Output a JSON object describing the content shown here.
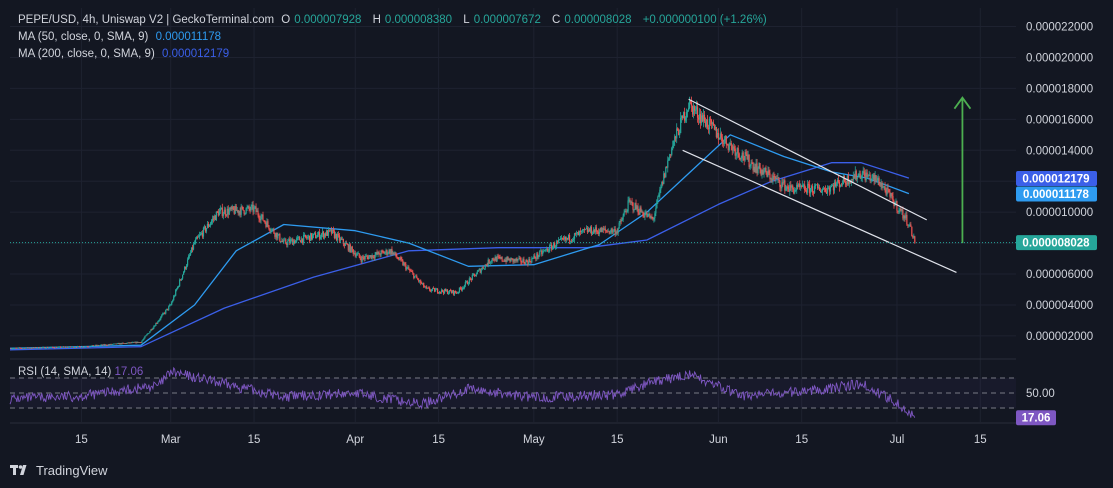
{
  "header": {
    "symbol_line": "PEPE/USD, 4h, Uniswap V2 | GeckoTerminal.com",
    "o_label": "O",
    "o_value": "0.000007928",
    "h_label": "H",
    "h_value": "0.000008380",
    "l_label": "L",
    "l_value": "0.000007672",
    "c_label": "C",
    "c_value": "0.000008028",
    "change": "+0.000000100 (+1.26%)",
    "ma50_label": "MA (50, close, 0, SMA, 9)",
    "ma50_value": "0.000011178",
    "ma200_label": "MA (200, close, 0, SMA, 9)",
    "ma200_value": "0.000012179"
  },
  "rsi_legend": {
    "label": "RSI (14, SMA, 14)",
    "value": "17.06"
  },
  "footer": {
    "brand": "TradingView"
  },
  "colors": {
    "background": "#131722",
    "up": "#26a69a",
    "down": "#ef5350",
    "ma50": "#2e9bf0",
    "ma200": "#3b5fe8",
    "rsi": "#7e57c2",
    "arrow": "#4caf50",
    "channel": "#e0e3eb"
  },
  "chart_data": {
    "type": "candlestick",
    "title": "PEPE/USD, 4h, Uniswap V2 | GeckoTerminal.com",
    "price_axis": {
      "ticks": [
        "0.000002000",
        "0.000004000",
        "0.000006000",
        "0.000008000",
        "0.000010000",
        "0.000012000",
        "0.000014000",
        "0.000016000",
        "0.000018000",
        "0.000020000",
        "0.000022000"
      ],
      "tick_values": [
        2e-06,
        4e-06,
        6e-06,
        8e-06,
        1e-05,
        1.2e-05,
        1.4e-05,
        1.6e-05,
        1.8e-05,
        2e-05,
        2.2e-05
      ],
      "ylim": [
        7e-07,
        2.32e-05
      ]
    },
    "time_axis": {
      "labels": [
        "15",
        "Mar",
        "15",
        "Apr",
        "15",
        "May",
        "15",
        "Jun",
        "15",
        "Jul",
        "15"
      ],
      "dates": [
        "2024-02-15",
        "2024-03-01",
        "2024-03-15",
        "2024-04-01",
        "2024-04-15",
        "2024-05-01",
        "2024-05-15",
        "2024-06-01",
        "2024-06-15",
        "2024-07-01",
        "2024-07-15"
      ],
      "xlim": [
        "2024-02-03",
        "2024-07-21"
      ]
    },
    "price_series": {
      "name": "PEPE/USD close",
      "dates": [
        "2024-02-03",
        "2024-02-15",
        "2024-02-25",
        "2024-03-01",
        "2024-03-05",
        "2024-03-09",
        "2024-03-15",
        "2024-03-20",
        "2024-03-28",
        "2024-04-02",
        "2024-04-07",
        "2024-04-13",
        "2024-04-18",
        "2024-04-24",
        "2024-04-30",
        "2024-05-05",
        "2024-05-10",
        "2024-05-15",
        "2024-05-17",
        "2024-05-21",
        "2024-05-24",
        "2024-05-27",
        "2024-06-01",
        "2024-06-07",
        "2024-06-13",
        "2024-06-19",
        "2024-06-25",
        "2024-06-28",
        "2024-07-03",
        "2024-07-04"
      ],
      "values": [
        1.2e-06,
        1.3e-06,
        1.6e-06,
        4e-06,
        8e-06,
        1e-05,
        1.02e-05,
        8e-06,
        8.7e-06,
        7e-06,
        7.5e-06,
        5e-06,
        4.8e-06,
        7e-06,
        6.8e-06,
        8e-06,
        8.8e-06,
        8.8e-06,
        1.06e-05,
        9.5e-06,
        1.4e-05,
        1.7e-05,
        1.5e-05,
        1.3e-05,
        1.15e-05,
        1.15e-05,
        1.25e-05,
        1.2e-05,
        9.3e-06,
        8.028e-06
      ]
    },
    "ma50": {
      "name": "MA (50, close, 0, SMA, 9)",
      "last": 1.1178e-05,
      "dates": [
        "2024-02-03",
        "2024-02-25",
        "2024-03-05",
        "2024-03-12",
        "2024-03-20",
        "2024-04-01",
        "2024-04-10",
        "2024-04-20",
        "2024-05-01",
        "2024-05-12",
        "2024-05-20",
        "2024-05-27",
        "2024-06-03",
        "2024-06-12",
        "2024-06-20",
        "2024-06-26",
        "2024-07-03"
      ],
      "values": [
        1.2e-06,
        1.4e-06,
        4e-06,
        7.5e-06,
        9.2e-06,
        8.8e-06,
        8e-06,
        6.5e-06,
        6.6e-06,
        7.9e-06,
        1e-05,
        1.25e-05,
        1.5e-05,
        1.36e-05,
        1.26e-05,
        1.22e-05,
        1.12e-05
      ]
    },
    "ma200": {
      "name": "MA (200, close, 0, SMA, 9)",
      "last": 1.2179e-05,
      "dates": [
        "2024-02-03",
        "2024-02-25",
        "2024-03-10",
        "2024-03-25",
        "2024-04-10",
        "2024-04-25",
        "2024-05-10",
        "2024-05-20",
        "2024-06-01",
        "2024-06-10",
        "2024-06-20",
        "2024-06-25",
        "2024-07-03"
      ],
      "values": [
        1.1e-06,
        1.3e-06,
        3.8e-06,
        5.8e-06,
        7.5e-06,
        7.7e-06,
        7.7e-06,
        8.2e-06,
        1.05e-05,
        1.2e-05,
        1.32e-05,
        1.32e-05,
        1.22e-05
      ]
    },
    "channel": {
      "upper": {
        "dates": [
          "2024-05-27",
          "2024-07-06"
        ],
        "values": [
          1.73e-05,
          9.5e-06
        ]
      },
      "lower": {
        "dates": [
          "2024-05-26",
          "2024-07-11"
        ],
        "values": [
          1.4e-05,
          6.1e-06
        ]
      }
    },
    "arrow": {
      "date": "2024-07-12",
      "from": 8e-06,
      "to": 1.74e-05
    },
    "current_price": 8.028e-06,
    "price_labels": [
      "0.000012179",
      "0.000011178",
      "0.000008028"
    ],
    "rsi": {
      "name": "RSI (14, SMA, 14)",
      "value": 17.06,
      "level_label": "50.00",
      "levels": [
        70,
        50,
        30
      ],
      "ylim": [
        0,
        100
      ],
      "dates": [
        "2024-02-03",
        "2024-02-15",
        "2024-02-28",
        "2024-03-01",
        "2024-03-10",
        "2024-03-20",
        "2024-04-01",
        "2024-04-12",
        "2024-04-20",
        "2024-05-01",
        "2024-05-15",
        "2024-05-20",
        "2024-05-27",
        "2024-06-05",
        "2024-06-15",
        "2024-06-25",
        "2024-07-01",
        "2024-07-04"
      ],
      "values": [
        42,
        46,
        60,
        78,
        62,
        45,
        50,
        35,
        55,
        44,
        48,
        62,
        75,
        46,
        52,
        62,
        38,
        17.06
      ]
    }
  }
}
